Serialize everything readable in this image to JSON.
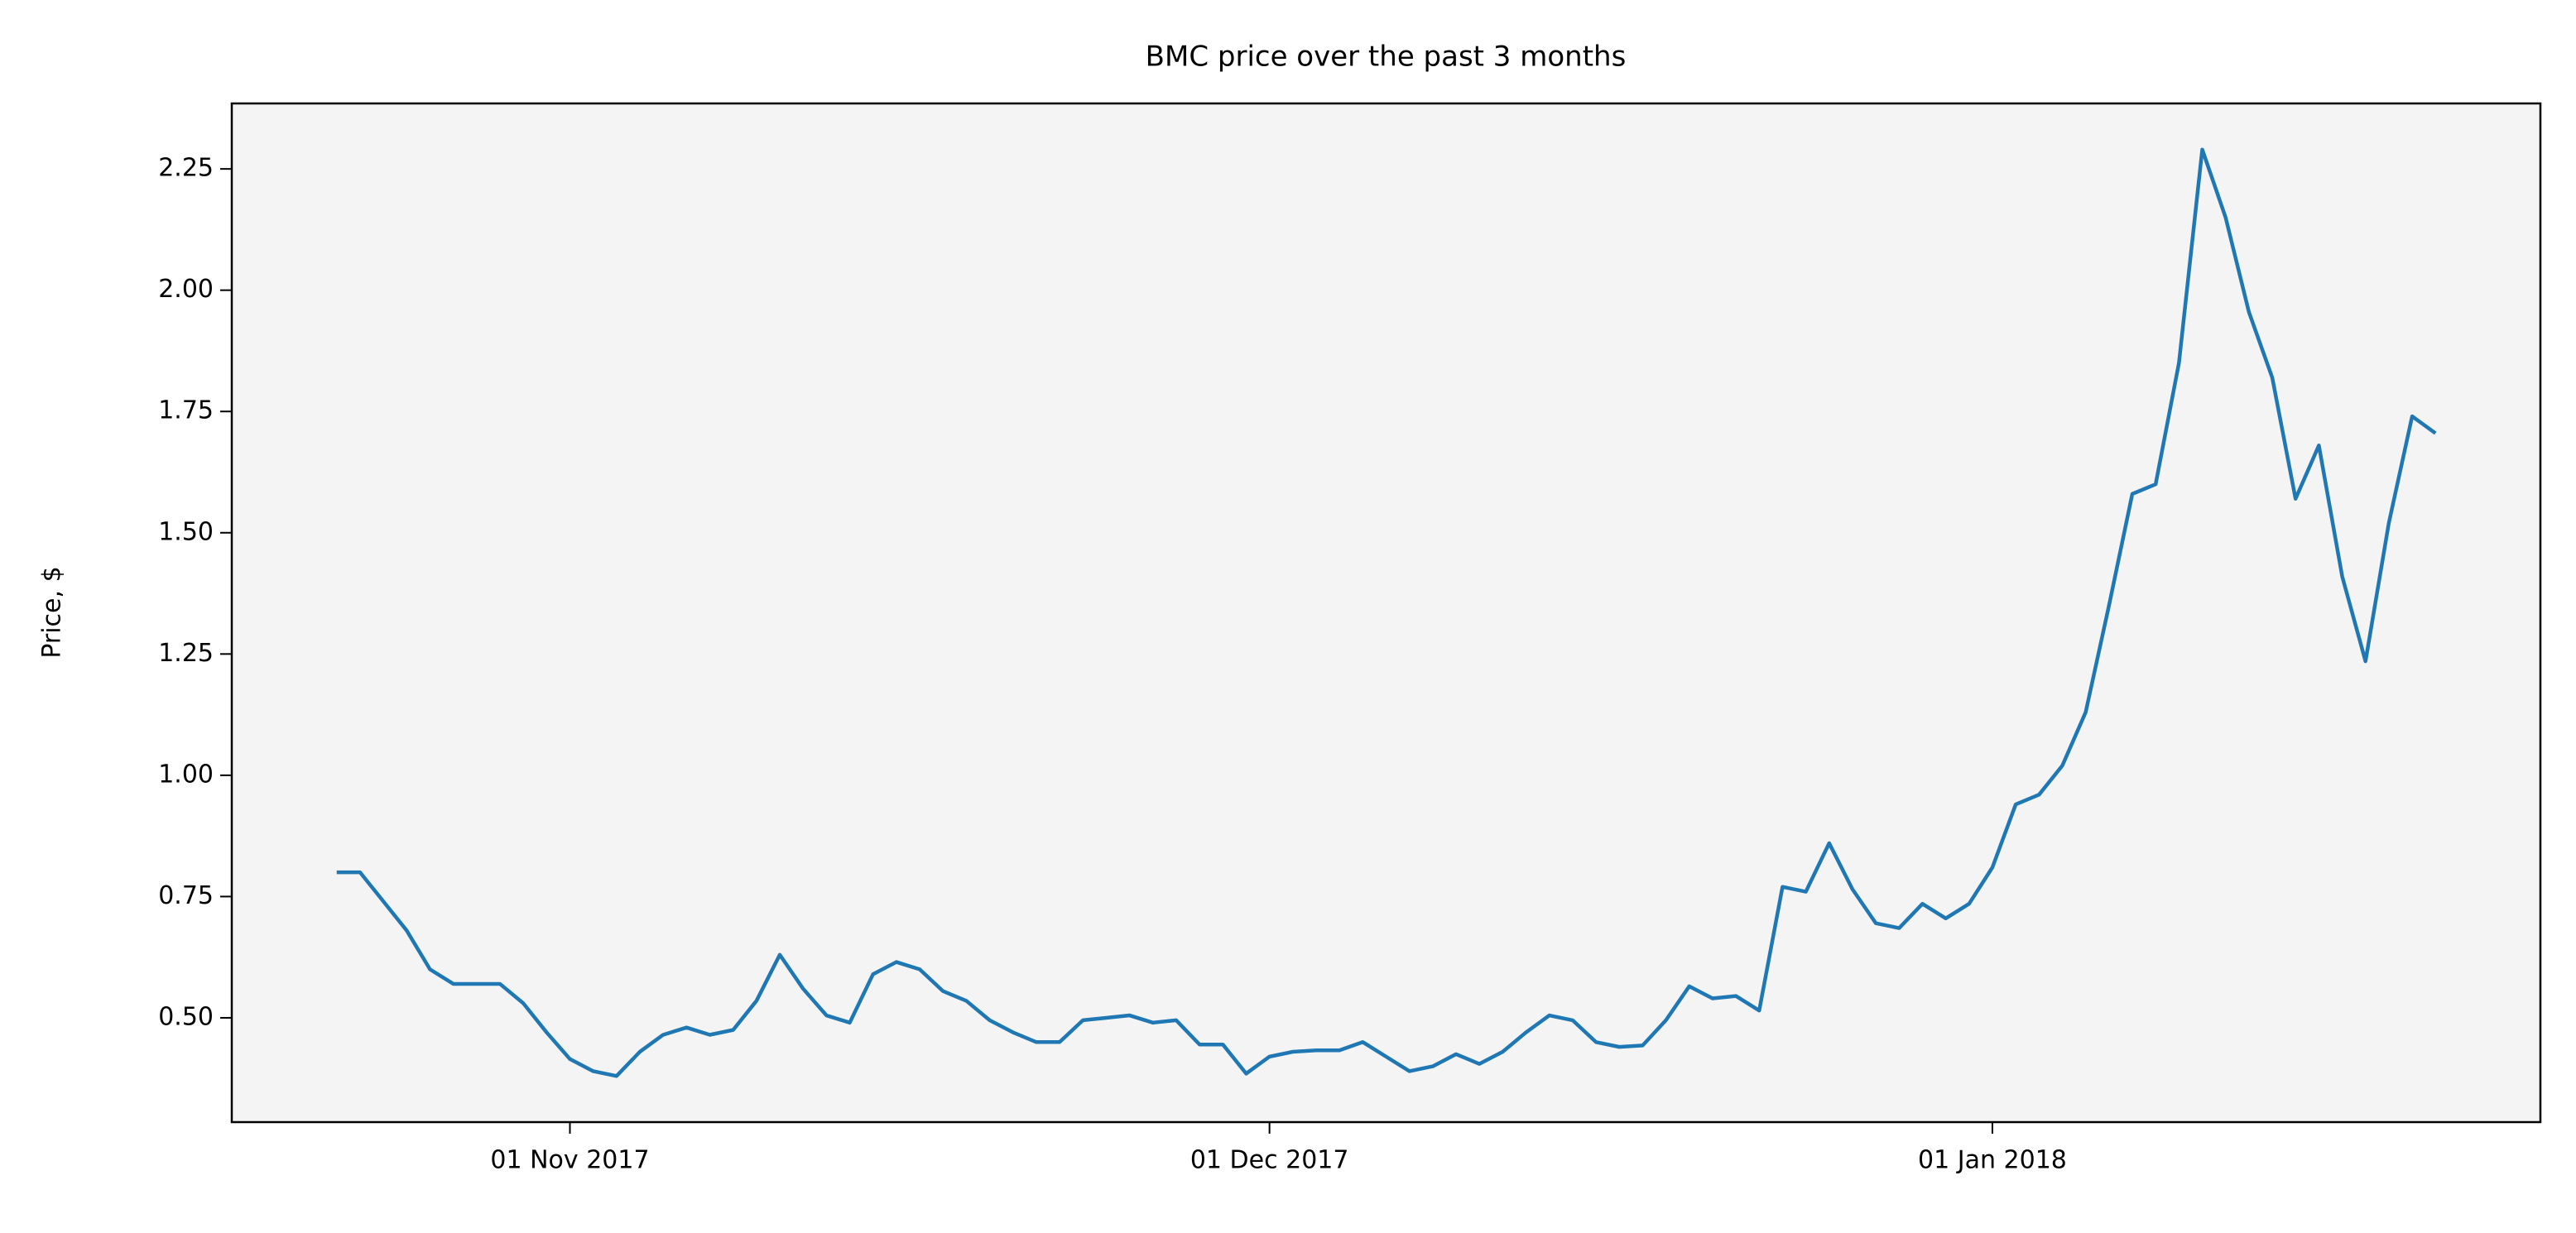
{
  "chart_data": {
    "type": "line",
    "title": "BMC price over the past 3 months",
    "y_label": "Price, $",
    "x": [
      "2017-10-22",
      "2017-10-23",
      "2017-10-24",
      "2017-10-25",
      "2017-10-26",
      "2017-10-27",
      "2017-10-28",
      "2017-10-29",
      "2017-10-30",
      "2017-10-31",
      "2017-11-01",
      "2017-11-02",
      "2017-11-03",
      "2017-11-04",
      "2017-11-05",
      "2017-11-06",
      "2017-11-07",
      "2017-11-08",
      "2017-11-09",
      "2017-11-10",
      "2017-11-11",
      "2017-11-12",
      "2017-11-13",
      "2017-11-14",
      "2017-11-15",
      "2017-11-16",
      "2017-11-17",
      "2017-11-18",
      "2017-11-19",
      "2017-11-20",
      "2017-11-21",
      "2017-11-22",
      "2017-11-23",
      "2017-11-24",
      "2017-11-25",
      "2017-11-26",
      "2017-11-27",
      "2017-11-28",
      "2017-11-29",
      "2017-11-30",
      "2017-12-01",
      "2017-12-02",
      "2017-12-03",
      "2017-12-04",
      "2017-12-05",
      "2017-12-06",
      "2017-12-07",
      "2017-12-08",
      "2017-12-09",
      "2017-12-10",
      "2017-12-11",
      "2017-12-12",
      "2017-12-13",
      "2017-12-14",
      "2017-12-15",
      "2017-12-16",
      "2017-12-17",
      "2017-12-18",
      "2017-12-19",
      "2017-12-20",
      "2017-12-21",
      "2017-12-22",
      "2017-12-23",
      "2017-12-24",
      "2017-12-25",
      "2017-12-26",
      "2017-12-27",
      "2017-12-28",
      "2017-12-29",
      "2017-12-30",
      "2017-12-31",
      "2018-01-01",
      "2018-01-02",
      "2018-01-03",
      "2018-01-04",
      "2018-01-05",
      "2018-01-06",
      "2018-01-07",
      "2018-01-08",
      "2018-01-09",
      "2018-01-10",
      "2018-01-11",
      "2018-01-12",
      "2018-01-13",
      "2018-01-14",
      "2018-01-15",
      "2018-01-16",
      "2018-01-17",
      "2018-01-18",
      "2018-01-19",
      "2018-01-20"
    ],
    "values": [
      0.8,
      0.8,
      0.74,
      0.68,
      0.6,
      0.57,
      0.57,
      0.57,
      0.53,
      0.47,
      0.415,
      0.39,
      0.38,
      0.43,
      0.465,
      0.48,
      0.465,
      0.475,
      0.535,
      0.63,
      0.56,
      0.505,
      0.49,
      0.59,
      0.615,
      0.6,
      0.555,
      0.535,
      0.495,
      0.47,
      0.45,
      0.45,
      0.495,
      0.5,
      0.505,
      0.49,
      0.495,
      0.445,
      0.445,
      0.385,
      0.42,
      0.43,
      0.433,
      0.433,
      0.45,
      0.42,
      0.39,
      0.4,
      0.425,
      0.405,
      0.43,
      0.47,
      0.505,
      0.495,
      0.45,
      0.44,
      0.443,
      0.495,
      0.565,
      0.54,
      0.545,
      0.515,
      0.77,
      0.76,
      0.86,
      0.765,
      0.695,
      0.685,
      0.735,
      0.705,
      0.735,
      0.81,
      0.94,
      0.96,
      1.02,
      1.13,
      1.35,
      1.58,
      1.6,
      1.85,
      2.29,
      2.15,
      1.955,
      1.82,
      1.57,
      1.68,
      1.41,
      1.235,
      1.52,
      1.74,
      1.705
    ],
    "color": "#1f77b4",
    "xlim": [
      "2017-10-17T12:00:00Z",
      "2018-01-24T12:00:00Z"
    ],
    "xticks": [
      {
        "value": "2017-11-01",
        "label": "01 Nov 2017"
      },
      {
        "value": "2017-12-01",
        "label": "01 Dec 2017"
      },
      {
        "value": "2018-01-01",
        "label": "01 Jan 2018"
      }
    ],
    "ylim": [
      0.285,
      2.385
    ],
    "yticks": [
      {
        "value": 0.5,
        "label": "0.50"
      },
      {
        "value": 0.75,
        "label": "0.75"
      },
      {
        "value": 1,
        "label": "1.00"
      },
      {
        "value": 1.25,
        "label": "1.25"
      },
      {
        "value": 1.5,
        "label": "1.50"
      },
      {
        "value": 1.75,
        "label": "1.75"
      },
      {
        "value": 2,
        "label": "2.00"
      },
      {
        "value": 2.25,
        "label": "2.25"
      }
    ],
    "grid": false,
    "background": "#f4f4f4"
  }
}
